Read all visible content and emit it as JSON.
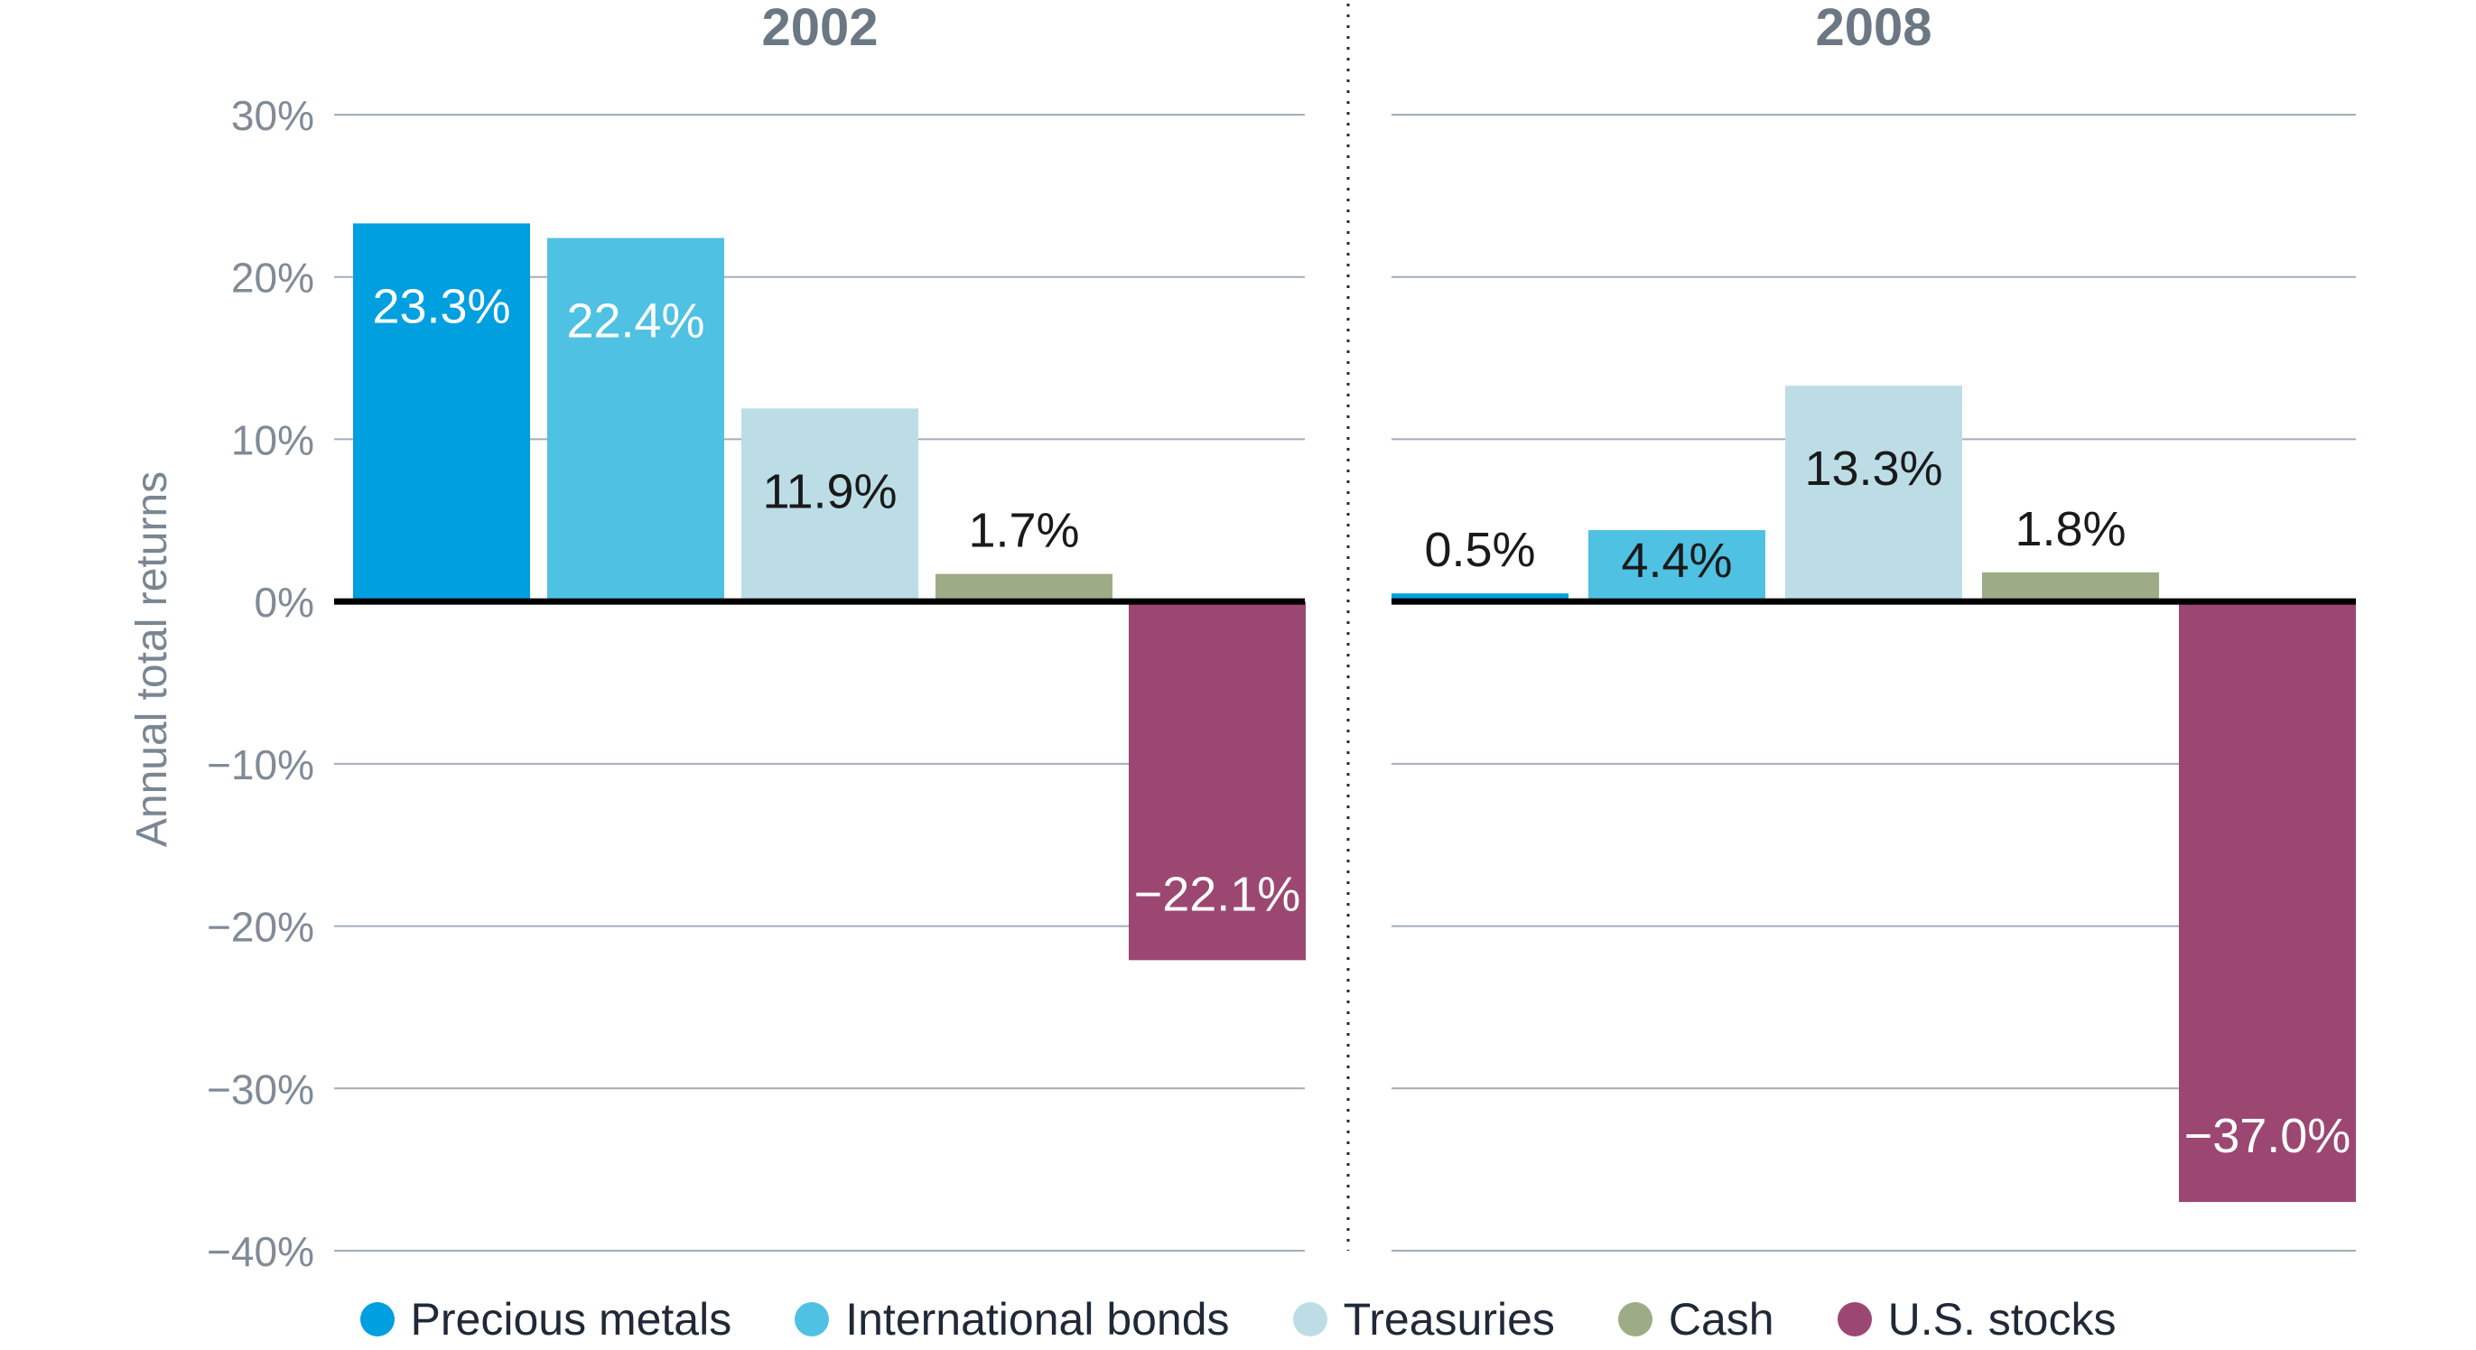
{
  "chart_data": {
    "type": "bar",
    "ylabel": "Annual total returns",
    "ylim": [
      -40,
      30
    ],
    "yticks": [
      30,
      20,
      10,
      0,
      -10,
      -20,
      -30,
      -40
    ],
    "ytick_labels": [
      "30%",
      "20%",
      "10%",
      "0%",
      "−10%",
      "−20%",
      "−30%",
      "−40%"
    ],
    "grid": true,
    "legend_position": "bottom",
    "categories": [
      "Precious metals",
      "International bonds",
      "Treasuries",
      "Cash",
      "U.S. stocks"
    ],
    "colors": [
      "#009fdf",
      "#4fc1e2",
      "#bcdde6",
      "#9dab87",
      "#9c4772"
    ],
    "panels": [
      {
        "title": "2002",
        "values": [
          23.3,
          22.4,
          11.9,
          1.7,
          -22.1
        ],
        "labels": [
          "23.3%",
          "22.4%",
          "11.9%",
          "1.7%",
          "−22.1%"
        ]
      },
      {
        "title": "2008",
        "values": [
          0.5,
          4.4,
          13.3,
          1.8,
          -37.0
        ],
        "labels": [
          "0.5%",
          "4.4%",
          "13.3%",
          "1.8%",
          "−37.0%"
        ]
      }
    ]
  }
}
